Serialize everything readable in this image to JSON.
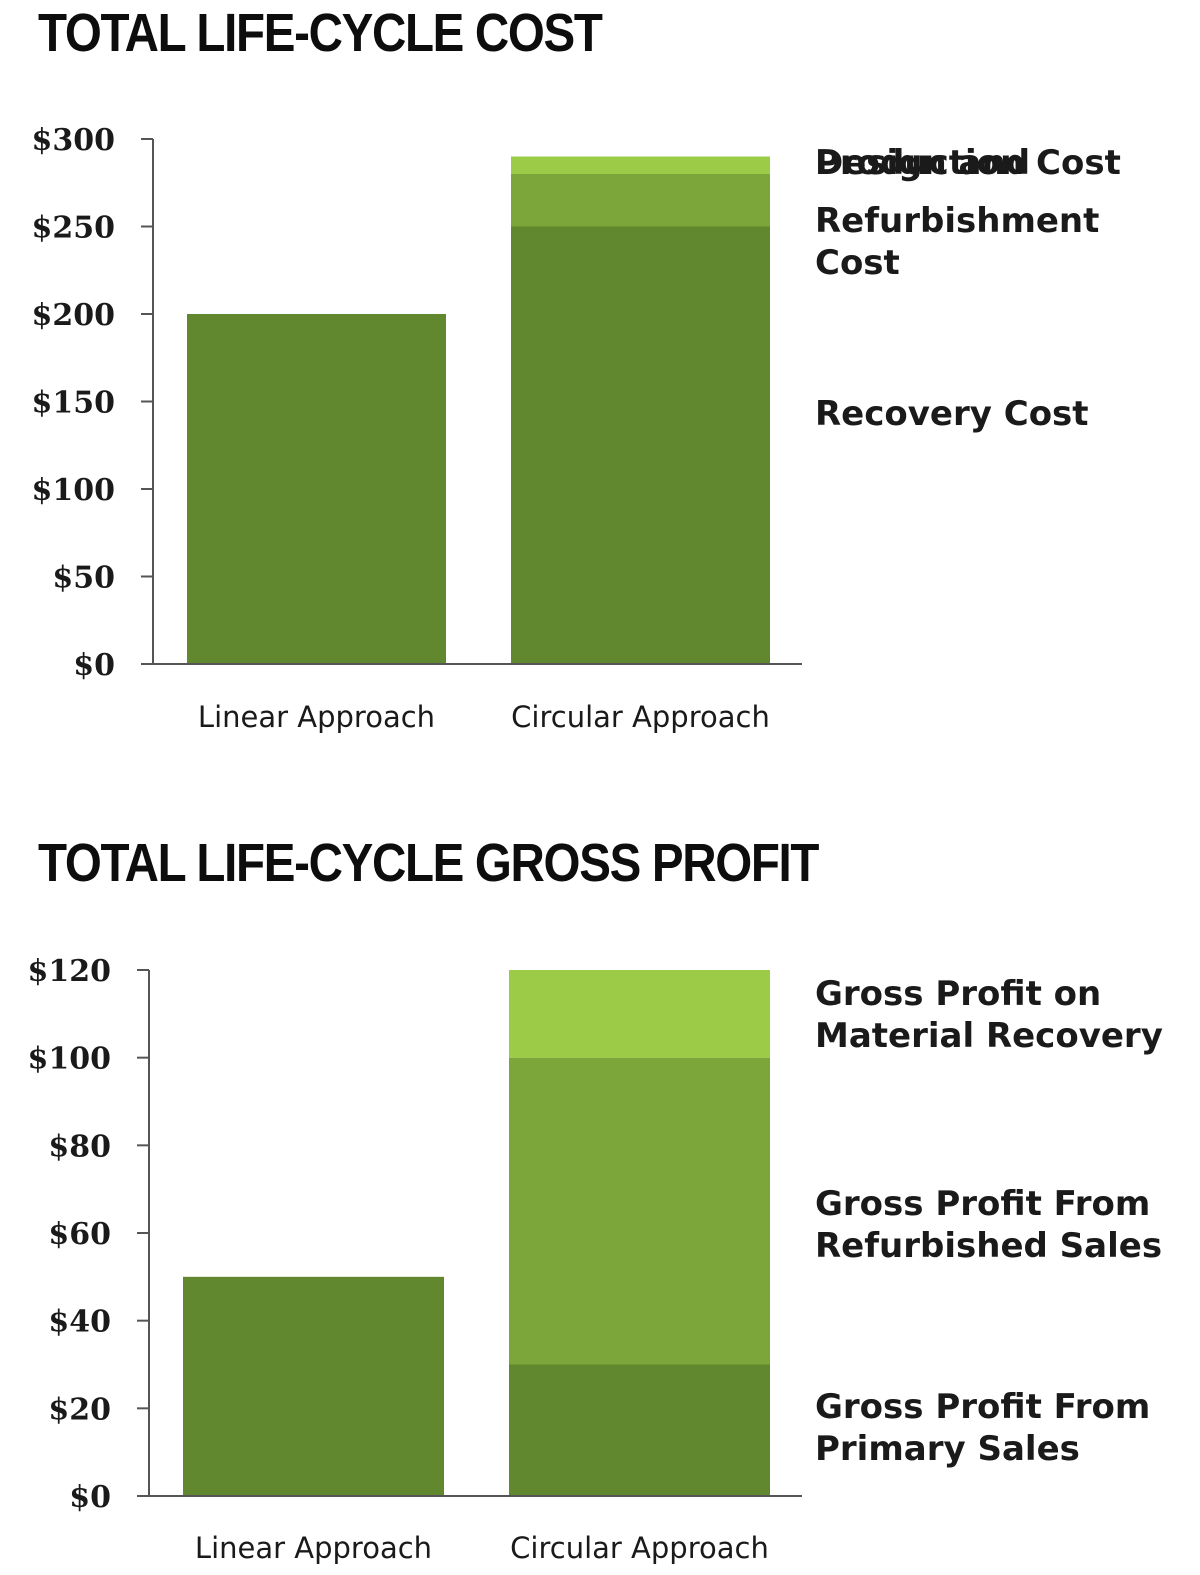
{
  "chart_data": [
    {
      "type": "bar",
      "stacked": true,
      "title": "TOTAL LIFE-CYCLE COST",
      "categories": [
        "Linear Approach",
        "Circular Approach"
      ],
      "y_ticks": [
        "$0",
        "$50",
        "$100",
        "$150",
        "$200",
        "$250",
        "$300"
      ],
      "ylim": [
        0,
        300
      ],
      "series": [
        {
          "name": "Design and Production Cost",
          "label_lines": [
            "Design and",
            "Production Cost"
          ],
          "values": [
            200,
            250
          ],
          "color": "#61882e"
        },
        {
          "name": "Refurbishment Cost",
          "label_lines": [
            "Refurbishment",
            "Cost"
          ],
          "values": [
            0,
            30
          ],
          "color": "#7ca63a"
        },
        {
          "name": "Recovery Cost",
          "label_lines": [
            "Recovery Cost"
          ],
          "values": [
            0,
            10
          ],
          "color": "#9ccc47"
        }
      ]
    },
    {
      "type": "bar",
      "stacked": true,
      "title": "TOTAL LIFE-CYCLE GROSS PROFIT",
      "categories": [
        "Linear Approach",
        "Circular Approach"
      ],
      "y_ticks": [
        "$0",
        "$20",
        "$40",
        "$60",
        "$80",
        "$100",
        "$120"
      ],
      "ylim": [
        0,
        120
      ],
      "series": [
        {
          "name": "Gross Profit From Primary Sales",
          "label_lines": [
            "Gross Profit From",
            "Primary Sales"
          ],
          "values": [
            50,
            30
          ],
          "color": "#61882e"
        },
        {
          "name": "Gross Profit From Refurbished Sales",
          "label_lines": [
            "Gross Profit From",
            "Refurbished Sales"
          ],
          "values": [
            0,
            70
          ],
          "color": "#7ca63a"
        },
        {
          "name": "Gross Profit on Material Recovery",
          "label_lines": [
            "Gross Profit on",
            "Material Recovery"
          ],
          "values": [
            0,
            20
          ],
          "color": "#9ccc47"
        }
      ]
    }
  ]
}
